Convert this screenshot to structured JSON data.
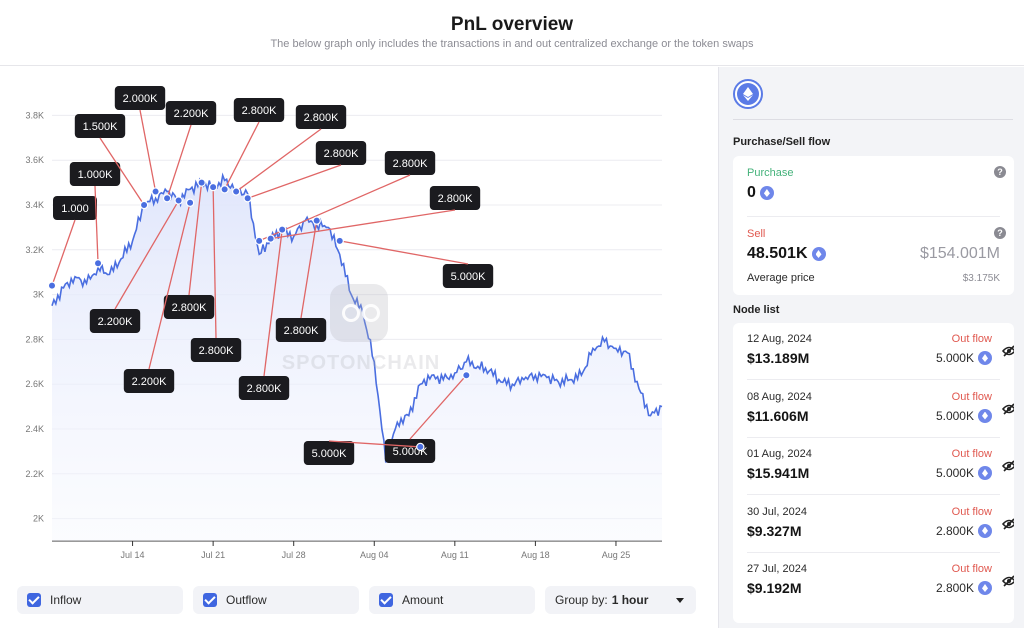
{
  "header": {
    "title": "PnL overview",
    "subtitle": "The below graph only includes the transactions in and out centralized exchange or the token swaps"
  },
  "chart_data": {
    "type": "line",
    "x_ticks": [
      "Jul 14",
      "Jul 21",
      "Jul 28",
      "Aug 04",
      "Aug 11",
      "Aug 18",
      "Aug 25"
    ],
    "y_ticks": [
      "2K",
      "2.2K",
      "2.4K",
      "2.6K",
      "2.8K",
      "3K",
      "3.2K",
      "3.4K",
      "3.6K",
      "3.8K"
    ],
    "ylim": [
      1900,
      3900
    ],
    "x_range_days": [
      "Jul 07",
      "Aug 29"
    ],
    "series": [
      {
        "values_by_day": [
          {
            "x": "Jul 07",
            "y": 2950
          },
          {
            "x": "Jul 08",
            "y": 3030
          },
          {
            "x": "Jul 09",
            "y": 3080
          },
          {
            "x": "Jul 10",
            "y": 3050
          },
          {
            "x": "Jul 11",
            "y": 3120
          },
          {
            "x": "Jul 12",
            "y": 3090
          },
          {
            "x": "Jul 13",
            "y": 3160
          },
          {
            "x": "Jul 14",
            "y": 3240
          },
          {
            "x": "Jul 15",
            "y": 3400
          },
          {
            "x": "Jul 16",
            "y": 3430
          },
          {
            "x": "Jul 17",
            "y": 3460
          },
          {
            "x": "Jul 18",
            "y": 3420
          },
          {
            "x": "Jul 19",
            "y": 3470
          },
          {
            "x": "Jul 20",
            "y": 3500
          },
          {
            "x": "Jul 21",
            "y": 3480
          },
          {
            "x": "Jul 22",
            "y": 3510
          },
          {
            "x": "Jul 23",
            "y": 3470
          },
          {
            "x": "Jul 24",
            "y": 3450
          },
          {
            "x": "Jul 25",
            "y": 3180
          },
          {
            "x": "Jul 26",
            "y": 3250
          },
          {
            "x": "Jul 27",
            "y": 3290
          },
          {
            "x": "Jul 28",
            "y": 3260
          },
          {
            "x": "Jul 29",
            "y": 3330
          },
          {
            "x": "Jul 30",
            "y": 3310
          },
          {
            "x": "Jul 31",
            "y": 3300
          },
          {
            "x": "Aug 01",
            "y": 3180
          },
          {
            "x": "Aug 02",
            "y": 3000
          },
          {
            "x": "Aug 03",
            "y": 2920
          },
          {
            "x": "Aug 04",
            "y": 2700
          },
          {
            "x": "Aug 05",
            "y": 2250
          },
          {
            "x": "Aug 06",
            "y": 2430
          },
          {
            "x": "Aug 07",
            "y": 2460
          },
          {
            "x": "Aug 08",
            "y": 2600
          },
          {
            "x": "Aug 09",
            "y": 2640
          },
          {
            "x": "Aug 10",
            "y": 2620
          },
          {
            "x": "Aug 11",
            "y": 2650
          },
          {
            "x": "Aug 12",
            "y": 2700
          },
          {
            "x": "Aug 13",
            "y": 2680
          },
          {
            "x": "Aug 14",
            "y": 2660
          },
          {
            "x": "Aug 15",
            "y": 2610
          },
          {
            "x": "Aug 16",
            "y": 2600
          },
          {
            "x": "Aug 17",
            "y": 2620
          },
          {
            "x": "Aug 18",
            "y": 2640
          },
          {
            "x": "Aug 19",
            "y": 2630
          },
          {
            "x": "Aug 20",
            "y": 2610
          },
          {
            "x": "Aug 21",
            "y": 2620
          },
          {
            "x": "Aug 22",
            "y": 2640
          },
          {
            "x": "Aug 23",
            "y": 2760
          },
          {
            "x": "Aug 24",
            "y": 2790
          },
          {
            "x": "Aug 25",
            "y": 2760
          },
          {
            "x": "Aug 26",
            "y": 2740
          },
          {
            "x": "Aug 27",
            "y": 2580
          },
          {
            "x": "Aug 28",
            "y": 2460
          },
          {
            "x": "Aug 29",
            "y": 2500
          }
        ]
      }
    ],
    "annotations": [
      {
        "label": "1.000",
        "x": "Jul 07",
        "y": 3040
      },
      {
        "label": "1.000K",
        "x": "Jul 11",
        "y": 3140
      },
      {
        "label": "1.500K",
        "x": "Jul 15",
        "y": 3400
      },
      {
        "label": "2.000K",
        "x": "Jul 16",
        "y": 3460
      },
      {
        "label": "2.200K",
        "x": "Jul 17",
        "y": 3430
      },
      {
        "label": "2.200K",
        "x": "Jul 18",
        "y": 3420
      },
      {
        "label": "2.200K",
        "x": "Jul 19",
        "y": 3410
      },
      {
        "label": "2.800K",
        "x": "Jul 20",
        "y": 3500
      },
      {
        "label": "2.800K",
        "x": "Jul 21",
        "y": 3480
      },
      {
        "label": "2.800K",
        "x": "Jul 22",
        "y": 3470
      },
      {
        "label": "2.800K",
        "x": "Jul 23",
        "y": 3460
      },
      {
        "label": "2.800K",
        "x": "Jul 24",
        "y": 3430
      },
      {
        "label": "2.800K",
        "x": "Jul 25",
        "y": 3240
      },
      {
        "label": "2.800K",
        "x": "Jul 26",
        "y": 3250
      },
      {
        "label": "2.800K",
        "x": "Jul 27",
        "y": 3290
      },
      {
        "label": "2.800K",
        "x": "Jul 30",
        "y": 3330
      },
      {
        "label": "5.000K",
        "x": "Aug 01",
        "y": 3240
      },
      {
        "label": "5.000K",
        "x": "Aug 08",
        "y": 2320
      },
      {
        "label": "5.000K",
        "x": "Aug 12",
        "y": 2640
      }
    ]
  },
  "filters": [
    {
      "label": "Inflow",
      "checked": true
    },
    {
      "label": "Outflow",
      "checked": true
    },
    {
      "label": "Amount",
      "checked": true
    }
  ],
  "group_by": {
    "label": "Group by:",
    "value": "1 hour"
  },
  "sidebar": {
    "token_icon": "ethereum-icon",
    "flow_title": "Purchase/Sell flow",
    "purchase": {
      "label": "Purchase",
      "value": "0"
    },
    "sell": {
      "label": "Sell",
      "value": "48.501K",
      "usd": "$154.001M"
    },
    "average": {
      "label": "Average price",
      "value": "$3.175K"
    },
    "node_title": "Node list",
    "nodes": [
      {
        "date": "12 Aug, 2024",
        "usd": "$13.189M",
        "flow": "Out flow",
        "amount": "5.000K"
      },
      {
        "date": "08 Aug, 2024",
        "usd": "$11.606M",
        "flow": "Out flow",
        "amount": "5.000K"
      },
      {
        "date": "01 Aug, 2024",
        "usd": "$15.941M",
        "flow": "Out flow",
        "amount": "5.000K"
      },
      {
        "date": "30 Jul, 2024",
        "usd": "$9.327M",
        "flow": "Out flow",
        "amount": "2.800K"
      },
      {
        "date": "27 Jul, 2024",
        "usd": "$9.192M",
        "flow": "Out flow",
        "amount": "2.800K"
      }
    ]
  },
  "watermark": "SPOTONCHAIN",
  "colors": {
    "line": "#4a6ee0",
    "callout": "#1b1b1f",
    "leader": "#e06666",
    "outflow": "#e0584f",
    "purchase": "#44b27a"
  }
}
